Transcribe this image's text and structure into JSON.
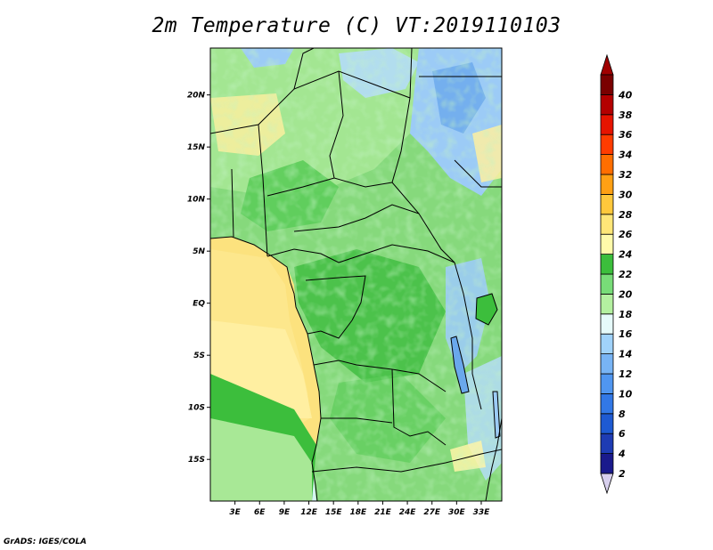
{
  "title": "2m Temperature (C) VT:2019110103",
  "credit": "GrADS: IGES/COLA",
  "map": {
    "lon_range": [
      0,
      35.5
    ],
    "lat_range": [
      -19,
      24.5
    ],
    "lat_ticks": [
      {
        "value": 20,
        "label": "20N"
      },
      {
        "value": 15,
        "label": "15N"
      },
      {
        "value": 10,
        "label": "10N"
      },
      {
        "value": 5,
        "label": "5N"
      },
      {
        "value": 0,
        "label": "EQ"
      },
      {
        "value": -5,
        "label": "5S"
      },
      {
        "value": -10,
        "label": "10S"
      },
      {
        "value": -15,
        "label": "15S"
      }
    ],
    "lon_ticks": [
      {
        "value": 3,
        "label": "3E"
      },
      {
        "value": 6,
        "label": "6E"
      },
      {
        "value": 9,
        "label": "9E"
      },
      {
        "value": 12,
        "label": "12E"
      },
      {
        "value": 15,
        "label": "15E"
      },
      {
        "value": 18,
        "label": "18E"
      },
      {
        "value": 21,
        "label": "21E"
      },
      {
        "value": 24,
        "label": "24E"
      },
      {
        "value": 27,
        "label": "27E"
      },
      {
        "value": 30,
        "label": "30E"
      },
      {
        "value": 33,
        "label": "33E"
      }
    ]
  },
  "colorbar": {
    "levels": [
      "2",
      "4",
      "6",
      "8",
      "10",
      "12",
      "14",
      "16",
      "18",
      "20",
      "22",
      "24",
      "26",
      "28",
      "30",
      "32",
      "34",
      "36",
      "38",
      "40"
    ],
    "colors": [
      "#1a1a8c",
      "#1e3cb4",
      "#1e5ad2",
      "#3278e6",
      "#5096f0",
      "#78b4f5",
      "#a0d2fa",
      "#e6fafa",
      "#b4f0a0",
      "#78dc78",
      "#3cbe3c",
      "#fffaaa",
      "#ffe678",
      "#ffc83c",
      "#ffa014",
      "#ff6e00",
      "#ff3c00",
      "#e61400",
      "#b40000",
      "#7a0000"
    ],
    "low_end_color": "#d8d0ee",
    "high_end_color": "#a00000"
  },
  "colors": {
    "ocean_warm": "#fce27e",
    "ocean_cool": "#fff4a8",
    "land_base": "#86d97c",
    "land_dark": "#46bf46",
    "land_light": "#b4ee9e",
    "cool_blue": "#9ccbf6",
    "deep_blue": "#6aa8ec",
    "border": "#000000"
  }
}
